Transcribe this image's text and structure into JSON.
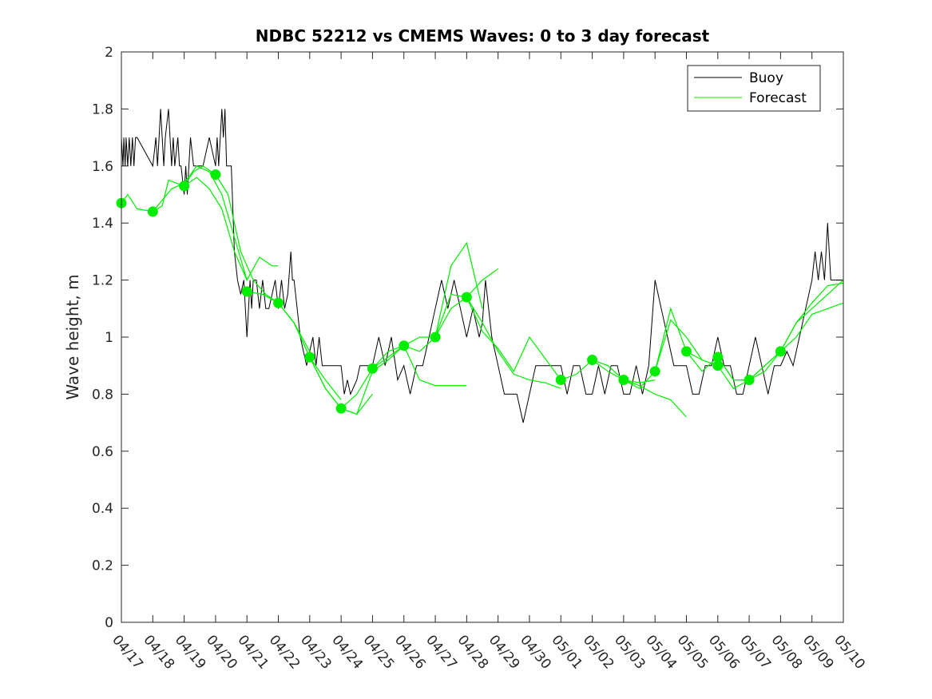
{
  "chart_data": {
    "type": "line",
    "title": "NDBC 52212 vs CMEMS Waves: 0 to 3 day forecast",
    "xlabel": "",
    "ylabel": "Wave height, m",
    "x_ticks": [
      "04/17",
      "04/18",
      "04/19",
      "04/20",
      "04/21",
      "04/22",
      "04/23",
      "04/24",
      "04/25",
      "04/26",
      "04/27",
      "04/28",
      "04/29",
      "04/30",
      "05/01",
      "05/02",
      "05/03",
      "05/04",
      "05/05",
      "05/06",
      "05/07",
      "05/08",
      "05/09",
      "05/10"
    ],
    "y_ticks": [
      "0",
      "0.2",
      "0.4",
      "0.6",
      "0.8",
      "1",
      "1.2",
      "1.4",
      "1.6",
      "1.8",
      "2"
    ],
    "xlim": [
      0,
      23
    ],
    "ylim": [
      0,
      2
    ],
    "x_unit_note": "x values are days after 04/17",
    "legend": {
      "position": "top-right",
      "entries": [
        "Buoy",
        "Forecast"
      ]
    },
    "colors": {
      "buoy": "#000000",
      "forecast": "#00ee00"
    },
    "series": [
      {
        "name": "Buoy",
        "x": [
          0,
          0.05,
          0.08,
          0.12,
          0.15,
          0.2,
          0.25,
          0.3,
          0.35,
          0.4,
          0.45,
          0.5,
          1,
          1.1,
          1.15,
          1.2,
          1.25,
          1.3,
          1.35,
          1.4,
          1.5,
          1.55,
          1.6,
          1.65,
          1.7,
          1.8,
          1.85,
          1.9,
          2,
          2.05,
          2.1,
          2.15,
          2.2,
          2.3,
          2.4,
          2.6,
          2.8,
          3.0,
          3.05,
          3.1,
          3.15,
          3.2,
          3.25,
          3.3,
          3.35,
          3.4,
          3.5,
          3.6,
          3.7,
          3.8,
          3.9,
          4.0,
          4.05,
          4.1,
          4.15,
          4.2,
          4.3,
          4.4,
          4.5,
          4.6,
          4.7,
          4.8,
          4.9,
          5.0,
          5.1,
          5.2,
          5.3,
          5.4,
          5.45,
          5.5,
          5.6,
          5.7,
          5.8,
          5.9,
          6.0,
          6.1,
          6.2,
          6.3,
          6.4,
          6.5,
          6.6,
          7.0,
          7.1,
          7.2,
          7.3,
          7.5,
          7.6,
          7.8,
          8.0,
          8.2,
          8.4,
          8.6,
          8.8,
          9.0,
          9.2,
          9.4,
          9.6,
          9.8,
          10.0,
          10.2,
          10.4,
          10.6,
          10.8,
          11.0,
          11.2,
          11.4,
          11.5,
          11.6,
          11.8,
          12.0,
          12.2,
          12.4,
          12.6,
          12.8,
          13.0,
          13.2,
          13.4,
          13.6,
          13.8,
          14.0,
          14.2,
          14.4,
          14.6,
          14.8,
          15.0,
          15.2,
          15.4,
          15.6,
          15.8,
          16.0,
          16.2,
          16.4,
          16.6,
          16.8,
          17.0,
          17.2,
          17.4,
          17.6,
          17.8,
          18.0,
          18.2,
          18.4,
          18.6,
          18.8,
          19.0,
          19.2,
          19.4,
          19.6,
          19.8,
          20.0,
          20.2,
          20.4,
          20.6,
          20.8,
          21.0,
          21.2,
          21.4,
          21.6,
          21.8,
          22.0,
          22.1,
          22.2,
          22.3,
          22.4,
          22.5,
          22.6,
          22.8,
          23.0
        ],
        "y": [
          1.7,
          1.6,
          1.7,
          1.6,
          1.7,
          1.6,
          1.7,
          1.6,
          1.7,
          1.6,
          1.7,
          1.7,
          1.6,
          1.7,
          1.6,
          1.7,
          1.8,
          1.7,
          1.6,
          1.7,
          1.8,
          1.7,
          1.6,
          1.7,
          1.6,
          1.7,
          1.6,
          1.6,
          1.5,
          1.6,
          1.5,
          1.6,
          1.7,
          1.6,
          1.6,
          1.6,
          1.7,
          1.6,
          1.7,
          1.6,
          1.7,
          1.8,
          1.7,
          1.8,
          1.6,
          1.6,
          1.6,
          1.3,
          1.2,
          1.15,
          1.2,
          1.0,
          1.1,
          1.2,
          1.1,
          1.2,
          1.2,
          1.1,
          1.2,
          1.1,
          1.1,
          1.15,
          1.2,
          1.1,
          1.2,
          1.1,
          1.15,
          1.3,
          1.2,
          1.2,
          1.1,
          1.0,
          0.95,
          0.9,
          0.95,
          1.0,
          0.9,
          1.0,
          0.9,
          0.9,
          0.9,
          0.9,
          0.8,
          0.85,
          0.8,
          0.85,
          0.9,
          0.9,
          0.9,
          1.0,
          0.9,
          1.0,
          0.85,
          0.9,
          0.8,
          0.9,
          0.9,
          1.0,
          1.1,
          1.2,
          1.1,
          1.2,
          1.1,
          1.0,
          1.1,
          1.0,
          1.05,
          1.2,
          1.0,
          0.9,
          0.8,
          0.8,
          0.8,
          0.7,
          0.8,
          0.9,
          0.9,
          0.9,
          0.9,
          0.9,
          0.8,
          0.9,
          0.9,
          0.8,
          0.8,
          0.9,
          0.8,
          0.9,
          0.9,
          0.8,
          0.8,
          0.9,
          0.8,
          0.9,
          1.2,
          1.1,
          1.0,
          0.9,
          0.9,
          0.9,
          0.8,
          0.8,
          0.9,
          0.9,
          1.0,
          0.9,
          0.9,
          0.8,
          0.8,
          0.9,
          1.0,
          0.9,
          0.8,
          0.9,
          0.9,
          0.95,
          0.9,
          1.0,
          1.1,
          1.2,
          1.3,
          1.2,
          1.3,
          1.2,
          1.4,
          1.2,
          1.2,
          1.2
        ]
      },
      {
        "name": "Forecast",
        "runs": [
          {
            "x": [
              0,
              0.2,
              0.5,
              1.0,
              1.3,
              1.5,
              2.0,
              2.3,
              2.6,
              3.0
            ],
            "y": [
              1.47,
              1.5,
              1.45,
              1.44,
              1.46,
              1.55,
              1.53,
              1.58,
              1.6,
              1.57
            ]
          },
          {
            "x": [
              1.0,
              1.3,
              1.6,
              2.0,
              2.4,
              2.8,
              3.2,
              3.6,
              4.0
            ],
            "y": [
              1.44,
              1.48,
              1.52,
              1.54,
              1.6,
              1.58,
              1.5,
              1.35,
              1.2
            ]
          },
          {
            "x": [
              2.0,
              2.4,
              2.8,
              3.2,
              3.6,
              4.0,
              4.4,
              4.8,
              5.0
            ],
            "y": [
              1.53,
              1.56,
              1.52,
              1.45,
              1.3,
              1.2,
              1.28,
              1.25,
              1.25
            ]
          },
          {
            "x": [
              3.0,
              3.4,
              3.8,
              4.2,
              4.6,
              5.0,
              5.5,
              6.0
            ],
            "y": [
              1.57,
              1.5,
              1.3,
              1.2,
              1.15,
              1.12,
              1.05,
              0.95
            ]
          },
          {
            "x": [
              4.0,
              4.5,
              5.0,
              5.5,
              6.0,
              6.5,
              7.0
            ],
            "y": [
              1.16,
              1.15,
              1.12,
              1.05,
              0.93,
              0.85,
              0.78
            ]
          },
          {
            "x": [
              5.0,
              5.5,
              6.0,
              6.5,
              7.0,
              7.5,
              8.0
            ],
            "y": [
              1.12,
              1.05,
              0.93,
              0.82,
              0.75,
              0.73,
              0.8
            ]
          },
          {
            "x": [
              6.0,
              6.5,
              7.0,
              7.5,
              8.0,
              8.5,
              9.0
            ],
            "y": [
              0.93,
              0.82,
              0.75,
              0.73,
              0.88,
              0.92,
              0.97
            ]
          },
          {
            "x": [
              7.0,
              7.5,
              8.0,
              8.5,
              9.0,
              9.5,
              10.0,
              11.0
            ],
            "y": [
              0.75,
              0.8,
              0.89,
              0.95,
              0.97,
              0.85,
              0.83,
              0.83
            ]
          },
          {
            "x": [
              8.0,
              8.5,
              9.0,
              9.5,
              10.0,
              10.5,
              11.0,
              11.5
            ],
            "y": [
              0.89,
              0.93,
              0.97,
              0.95,
              1.0,
              1.25,
              1.33,
              1.1
            ]
          },
          {
            "x": [
              9.0,
              9.5,
              10.0,
              10.5,
              11.0,
              11.5,
              12.0
            ],
            "y": [
              0.97,
              1.0,
              1.0,
              1.15,
              1.14,
              1.2,
              1.24
            ]
          },
          {
            "x": [
              10.0,
              10.5,
              11.0,
              11.5,
              12.0,
              12.5,
              13.0,
              13.5,
              14.0
            ],
            "y": [
              1.0,
              1.1,
              1.14,
              1.05,
              0.95,
              0.87,
              0.85,
              0.84,
              0.82
            ]
          },
          {
            "x": [
              11.0,
              11.5,
              12.0,
              12.5,
              13.0,
              14.0
            ],
            "y": [
              1.14,
              1.02,
              0.96,
              0.88,
              1.0,
              0.85
            ]
          },
          {
            "x": [
              14.0,
              14.5,
              15.0,
              15.5,
              16.0,
              16.5,
              17.0
            ],
            "y": [
              0.85,
              0.87,
              0.92,
              0.88,
              0.85,
              0.84,
              0.85
            ]
          },
          {
            "x": [
              15.0,
              15.5,
              16.0,
              16.5,
              17.0,
              17.5,
              18.0
            ],
            "y": [
              0.92,
              0.9,
              0.85,
              0.83,
              0.8,
              0.78,
              0.72
            ]
          },
          {
            "x": [
              16.0,
              16.5,
              17.0,
              17.5,
              18.0,
              18.5,
              19.0
            ],
            "y": [
              0.85,
              0.82,
              0.88,
              1.06,
              1.0,
              0.92,
              0.9
            ]
          },
          {
            "x": [
              17.0,
              17.5,
              18.0,
              18.5,
              19.0,
              19.5,
              20.0
            ],
            "y": [
              0.88,
              1.1,
              0.95,
              0.88,
              0.93,
              0.85,
              0.85
            ]
          },
          {
            "x": [
              18.0,
              18.5,
              19.0,
              19.5,
              20.0,
              20.5,
              21.0
            ],
            "y": [
              0.95,
              0.92,
              0.9,
              0.82,
              0.85,
              0.88,
              0.95
            ]
          },
          {
            "x": [
              19.0,
              19.5,
              20.0,
              20.5,
              21.0,
              21.5,
              22.0,
              22.5,
              23.0
            ],
            "y": [
              0.93,
              0.85,
              0.85,
              0.9,
              0.95,
              1.05,
              1.12,
              1.18,
              1.19
            ]
          },
          {
            "x": [
              20.0,
              20.5,
              21.0,
              21.5,
              22.0,
              22.5,
              23.0
            ],
            "y": [
              0.85,
              0.9,
              0.95,
              1.05,
              1.1,
              1.15,
              1.2
            ]
          },
          {
            "x": [
              21.0,
              21.5,
              22.0,
              22.5,
              23.0
            ],
            "y": [
              0.95,
              1.0,
              1.08,
              1.1,
              1.12
            ]
          }
        ],
        "markers": {
          "x": [
            0,
            1,
            2,
            3,
            4,
            5,
            6,
            7,
            8,
            9,
            10,
            11,
            14,
            15,
            16,
            17,
            18,
            19,
            19,
            20,
            21
          ],
          "y": [
            1.47,
            1.44,
            1.53,
            1.57,
            1.16,
            1.12,
            0.93,
            0.75,
            0.89,
            0.97,
            1.0,
            1.14,
            0.85,
            0.92,
            0.85,
            0.88,
            0.95,
            0.93,
            0.9,
            0.85,
            0.95
          ]
        }
      }
    ]
  }
}
